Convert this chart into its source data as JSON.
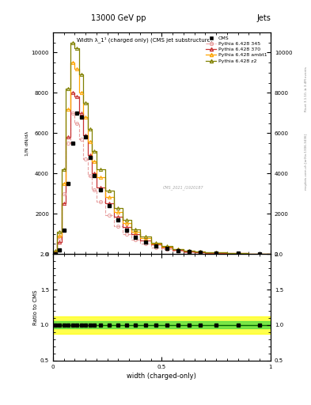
{
  "title_top": "13000 GeV pp",
  "title_right": "Jets",
  "plot_title": "Width λ_1¹ (charged only) (CMS jet substructure)",
  "xlabel": "width (charged-only)",
  "ylabel_main": "1/N dN/dλ",
  "ylabel_ratio": "Ratio to CMS",
  "right_label_top": "Rivet 3.1.10, ≥ 3.4M events",
  "right_label_bottom": "mcplots.cern.ch [arXiv:1306.3436]",
  "cms_watermark": "CMS_2021_I1920187",
  "x_bins": [
    0.0,
    0.02,
    0.04,
    0.06,
    0.08,
    0.1,
    0.12,
    0.14,
    0.16,
    0.18,
    0.2,
    0.24,
    0.28,
    0.32,
    0.36,
    0.4,
    0.45,
    0.5,
    0.55,
    0.6,
    0.65,
    0.7,
    0.8,
    0.9,
    1.0
  ],
  "cms_y": [
    0,
    200,
    1200,
    3500,
    5500,
    7000,
    6800,
    5800,
    4800,
    3900,
    3200,
    2400,
    1700,
    1200,
    850,
    600,
    400,
    270,
    180,
    120,
    85,
    55,
    28,
    8
  ],
  "p6_345_y": [
    50,
    800,
    3000,
    5500,
    7000,
    6500,
    5700,
    4700,
    3900,
    3200,
    2600,
    1950,
    1400,
    1000,
    720,
    510,
    340,
    230,
    155,
    105,
    73,
    48,
    22,
    7
  ],
  "p6_370_y": [
    80,
    600,
    2500,
    5800,
    8000,
    7800,
    7000,
    5900,
    4900,
    4000,
    3300,
    2500,
    1850,
    1350,
    970,
    690,
    460,
    310,
    210,
    140,
    97,
    64,
    29,
    9
  ],
  "p6_ambt1_y": [
    120,
    900,
    3500,
    7200,
    9500,
    9200,
    8000,
    6800,
    5600,
    4600,
    3800,
    2850,
    2100,
    1530,
    1100,
    780,
    520,
    350,
    235,
    157,
    108,
    72,
    33,
    10
  ],
  "p6_z2_y": [
    160,
    1100,
    4200,
    8200,
    10500,
    10200,
    8900,
    7500,
    6200,
    5100,
    4200,
    3150,
    2300,
    1700,
    1220,
    860,
    575,
    385,
    260,
    173,
    119,
    79,
    36,
    11
  ],
  "cms_color": "#000000",
  "p6_345_color": "#e8a0a0",
  "p6_370_color": "#c83232",
  "p6_ambt1_color": "#ffa500",
  "p6_z2_color": "#808000",
  "ratio_green_inner": 0.05,
  "ratio_yellow_outer": 0.12,
  "ylim_main": [
    0,
    11000
  ],
  "ylim_ratio": [
    0.5,
    2.0
  ],
  "xlim": [
    0.0,
    1.0
  ],
  "yticks_main": [
    0,
    2000,
    4000,
    6000,
    8000,
    10000
  ],
  "yticks_ratio": [
    0.5,
    1.0,
    1.5,
    2.0
  ]
}
